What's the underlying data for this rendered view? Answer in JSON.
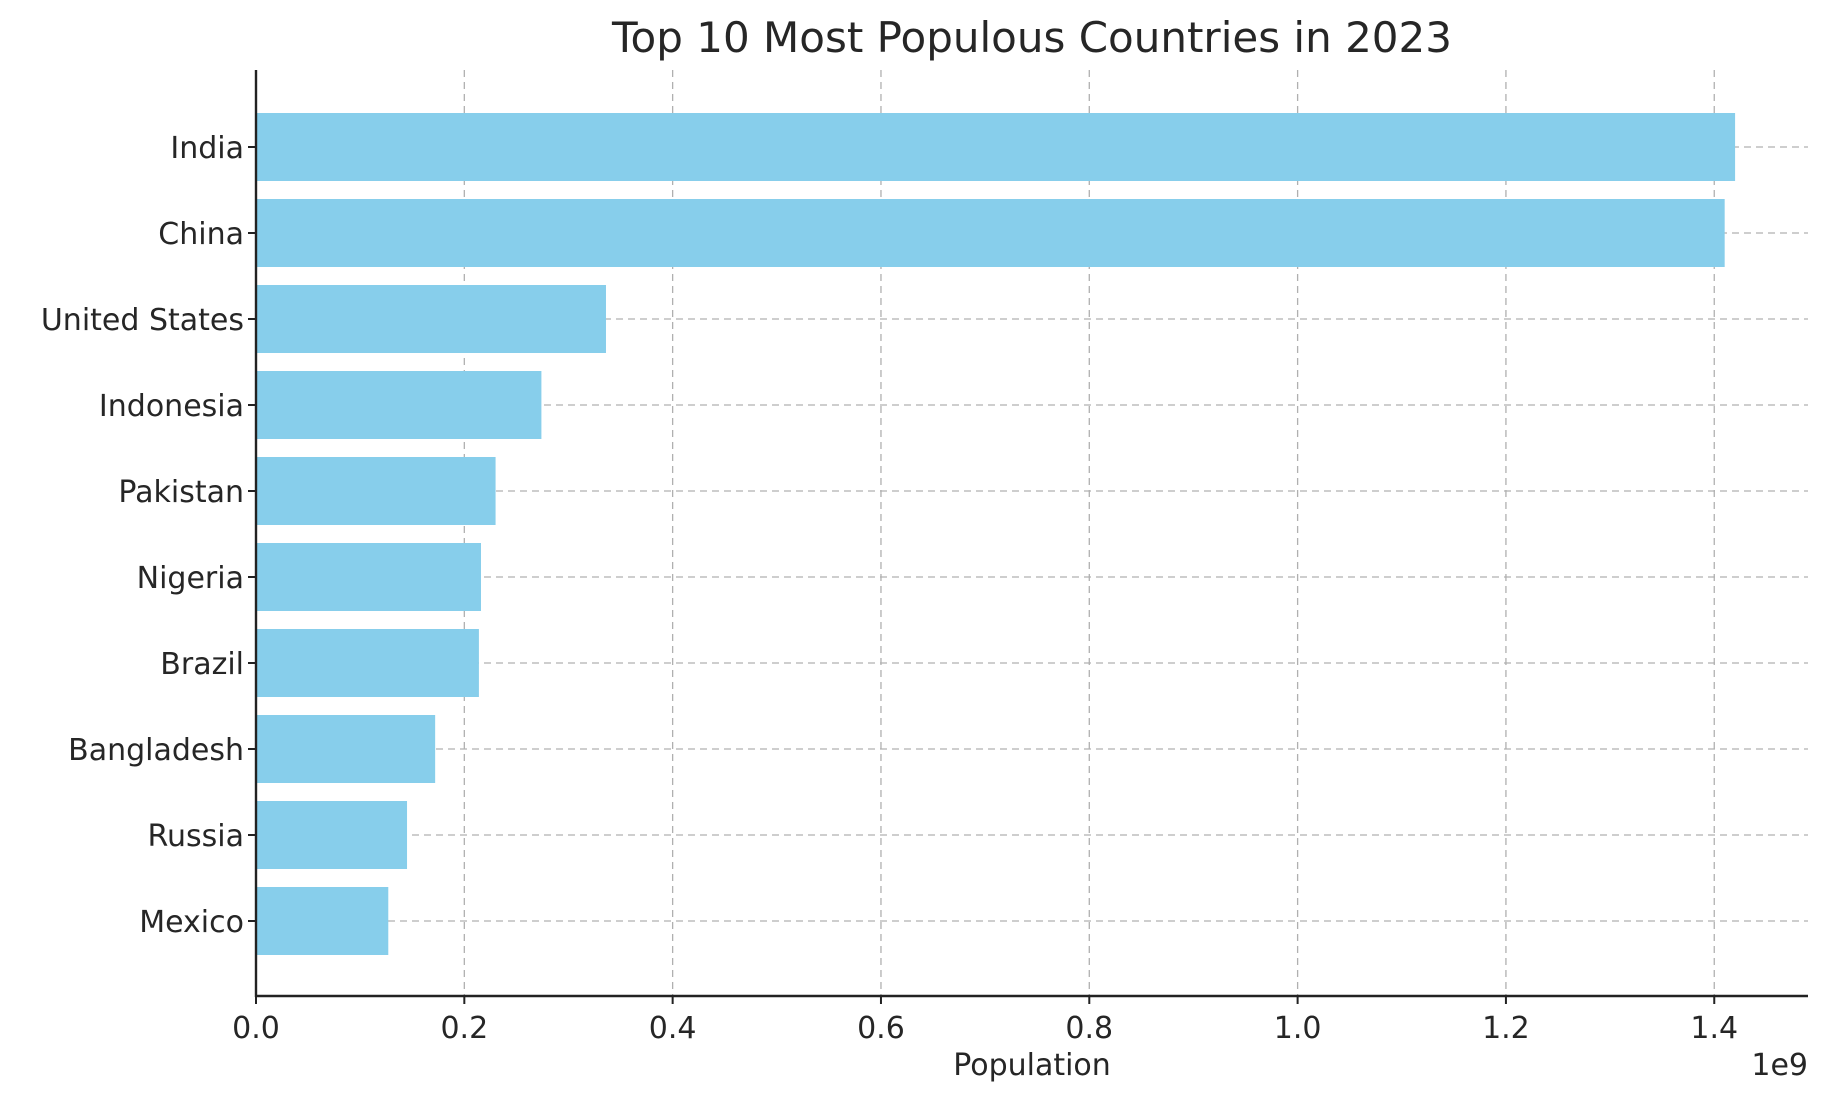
{
  "chart_data": {
    "type": "bar",
    "orientation": "horizontal",
    "title": "Top 10 Most Populous Countries in 2023",
    "xlabel": "Population",
    "ylabel": "",
    "x_offset_label": "1e9",
    "categories": [
      "India",
      "China",
      "United States",
      "Indonesia",
      "Pakistan",
      "Nigeria",
      "Brazil",
      "Bangladesh",
      "Russia",
      "Mexico"
    ],
    "values": [
      1420000000,
      1410000000,
      336000000,
      274000000,
      230000000,
      216000000,
      214000000,
      172000000,
      145000000,
      127000000
    ],
    "xlim": [
      0,
      1490000000
    ],
    "xticks": [
      0,
      200000000,
      400000000,
      600000000,
      800000000,
      1000000000,
      1200000000,
      1400000000
    ],
    "xtick_labels": [
      "0.0",
      "0.2",
      "0.4",
      "0.6",
      "0.8",
      "1.0",
      "1.2",
      "1.4"
    ],
    "bar_color": "#87ceeb",
    "grid": true,
    "legend": "none"
  }
}
